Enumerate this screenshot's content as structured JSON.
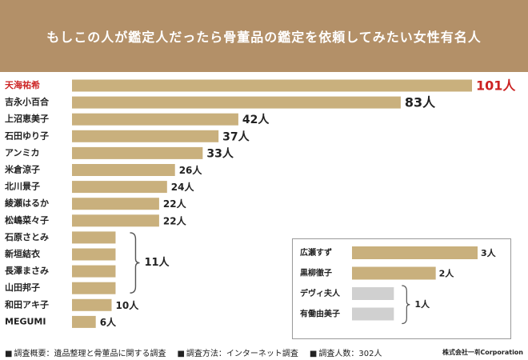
{
  "header": {
    "title": "もしこの人が鑑定人だったら骨董品の鑑定を依頼してみたい女性有名人"
  },
  "chart_data": {
    "type": "bar",
    "orientation": "horizontal",
    "title": "もしこの人が鑑定人だったら骨董品の鑑定を依頼してみたい女性有名人",
    "unit": "人",
    "categories": [
      "天海祐希",
      "吉永小百合",
      "上沼恵美子",
      "石田ゆり子",
      "アンミカ",
      "米倉涼子",
      "北川景子",
      "綾瀬はるか",
      "松嶋菜々子",
      "石原さとみ",
      "新垣結衣",
      "長澤まさみ",
      "山田邦子",
      "和田アキ子",
      "MEGUMI"
    ],
    "values": [
      101,
      83,
      42,
      37,
      33,
      26,
      24,
      22,
      22,
      11,
      11,
      11,
      11,
      10,
      6
    ],
    "labels": [
      "101人",
      "83人",
      "42人",
      "37人",
      "33人",
      "26人",
      "24人",
      "22人",
      "22人",
      null,
      null,
      null,
      null,
      "10人",
      "6人"
    ],
    "group_label": "11人",
    "highlight_index": 0,
    "inset": {
      "categories": [
        "広瀬すず",
        "黒柳徹子",
        "デヴィ夫人",
        "有働由美子"
      ],
      "values": [
        3,
        2,
        1,
        1
      ],
      "labels": [
        "3人",
        "2人",
        null,
        null
      ],
      "group_label": "1人",
      "muted": [
        false,
        false,
        true,
        true
      ]
    }
  },
  "colors": {
    "bar": "#c9b07d",
    "highlight_text": "#cc2222",
    "muted_bar": "#d0d0d0",
    "header_bg": "#b39068"
  },
  "footer": {
    "overview": "調査概要：遺品整理と骨董品に関する調査",
    "method": "調査方法：インターネット調査",
    "respondents": "調査人数：302人",
    "company": "株式会社一휘Corporation"
  }
}
